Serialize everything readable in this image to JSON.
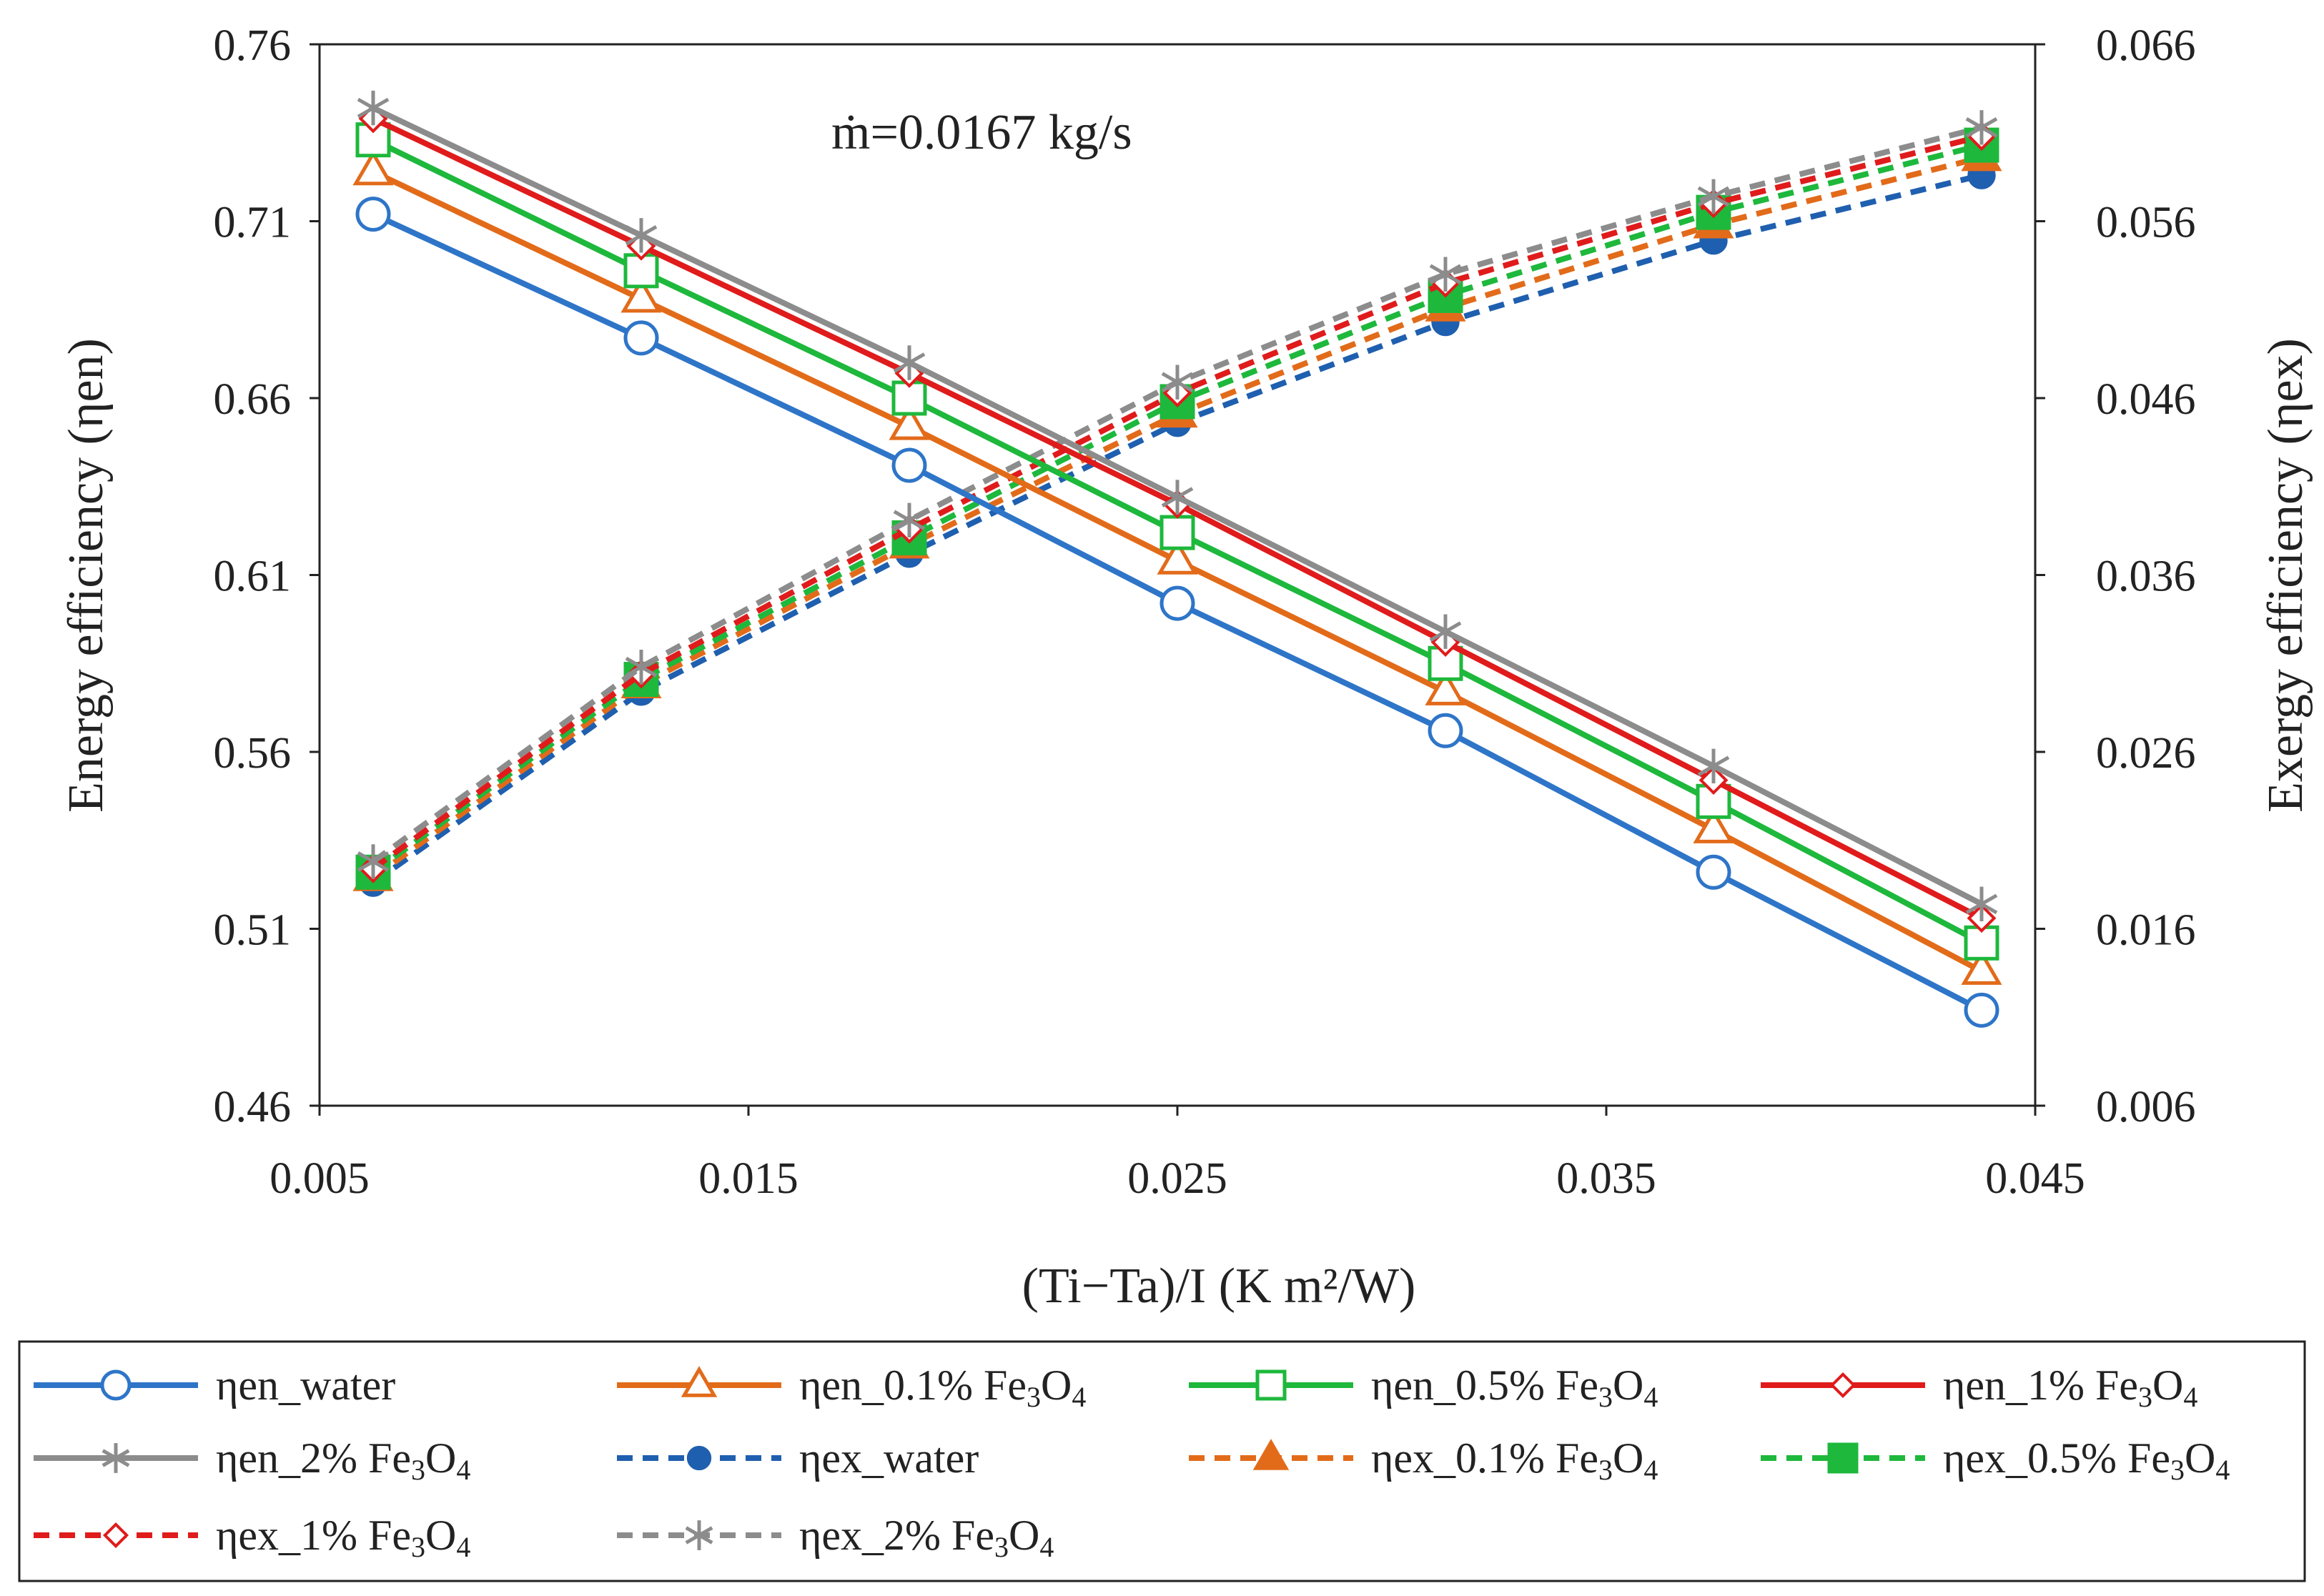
{
  "chart_data": {
    "type": "line",
    "annotation": "ṁ=0.0167 kg/s",
    "xlabel": "(Ti−Ta)/I (K m²/W)",
    "ylabel_left": "Energy efficiency (ηen)",
    "ylabel_right": "Exergy efficiency (ηex)",
    "xlim": [
      0.005,
      0.045
    ],
    "ylim_left": [
      0.46,
      0.76
    ],
    "ylim_right": [
      0.006,
      0.066
    ],
    "x_ticks": [
      "0.005",
      "0.015",
      "0.025",
      "0.035",
      "0.045"
    ],
    "y_left_ticks": [
      "0.46",
      "0.51",
      "0.56",
      "0.61",
      "0.66",
      "0.71",
      "0.76"
    ],
    "y_right_ticks": [
      "0.006",
      "0.016",
      "0.026",
      "0.036",
      "0.046",
      "0.056",
      "0.066"
    ],
    "x": [
      0.00625,
      0.0125,
      0.01875,
      0.025,
      0.03125,
      0.0375,
      0.04375
    ],
    "series": [
      {
        "name": "ηen_water",
        "axis": "left",
        "style": "solid",
        "marker": "circle-open",
        "color": "#2E75C8",
        "values": [
          0.712,
          0.677,
          0.641,
          0.602,
          0.566,
          0.526,
          0.487
        ]
      },
      {
        "name": "ηen_0.1% Fe3O4",
        "axis": "left",
        "style": "solid",
        "marker": "triangle-open",
        "color": "#E26B1A",
        "values": [
          0.724,
          0.688,
          0.652,
          0.614,
          0.577,
          0.538,
          0.498
        ]
      },
      {
        "name": "ηen_0.5% Fe3O4",
        "axis": "left",
        "style": "solid",
        "marker": "square-open",
        "color": "#1EB83C",
        "values": [
          0.733,
          0.696,
          0.66,
          0.622,
          0.585,
          0.546,
          0.506
        ]
      },
      {
        "name": "ηen_1% Fe3O4",
        "axis": "left",
        "style": "solid",
        "marker": "diamond-open",
        "color": "#E01B1B",
        "values": [
          0.739,
          0.703,
          0.667,
          0.63,
          0.591,
          0.552,
          0.513
        ]
      },
      {
        "name": "ηen_2% Fe3O4",
        "axis": "left",
        "style": "solid",
        "marker": "asterisk",
        "color": "#8C8C8C",
        "values": [
          0.742,
          0.706,
          0.67,
          0.632,
          0.594,
          0.556,
          0.517
        ]
      },
      {
        "name": "ηex_water",
        "axis": "right",
        "style": "dashed",
        "marker": "circle-filled",
        "color": "#1F5FAF",
        "values": [
          0.0186,
          0.0294,
          0.0372,
          0.0446,
          0.0503,
          0.0549,
          0.0586
        ]
      },
      {
        "name": "ηex_0.1% Fe3O4",
        "axis": "right",
        "style": "dashed",
        "marker": "triangle-filled",
        "color": "#E26B1A",
        "values": [
          0.0189,
          0.0298,
          0.0377,
          0.0451,
          0.0511,
          0.0558,
          0.0596
        ]
      },
      {
        "name": "ηex_0.5% Fe3O4",
        "axis": "right",
        "style": "dashed",
        "marker": "square-filled",
        "color": "#1EB83C",
        "values": [
          0.0192,
          0.0301,
          0.0381,
          0.0458,
          0.0518,
          0.0565,
          0.0603
        ]
      },
      {
        "name": "ηex_1% Fe3O4",
        "axis": "right",
        "style": "dashed",
        "marker": "diamond-open",
        "color": "#E01B1B",
        "values": [
          0.0194,
          0.0304,
          0.0386,
          0.0463,
          0.0525,
          0.057,
          0.0608
        ]
      },
      {
        "name": "ηex_2% Fe3O4",
        "axis": "right",
        "style": "dashed",
        "marker": "asterisk",
        "color": "#8C8C8C",
        "values": [
          0.0198,
          0.0308,
          0.0391,
          0.0469,
          0.053,
          0.0574,
          0.0613
        ]
      }
    ]
  },
  "legend": {
    "items": [
      {
        "base": "ηen_water",
        "sub1": "",
        "mid": "",
        "sub2": ""
      },
      {
        "base": "ηen_0.1% Fe",
        "sub1": "3",
        "mid": "O",
        "sub2": "4"
      },
      {
        "base": "ηen_0.5% Fe",
        "sub1": "3",
        "mid": "O",
        "sub2": "4"
      },
      {
        "base": "ηen_1% Fe",
        "sub1": "3",
        "mid": "O",
        "sub2": "4"
      },
      {
        "base": "ηen_2% Fe",
        "sub1": "3",
        "mid": "O",
        "sub2": "4"
      },
      {
        "base": "ηex_water",
        "sub1": "",
        "mid": "",
        "sub2": ""
      },
      {
        "base": "ηex_0.1% Fe",
        "sub1": "3",
        "mid": "O",
        "sub2": "4"
      },
      {
        "base": "ηex_0.5% Fe",
        "sub1": "3",
        "mid": "O",
        "sub2": "4"
      },
      {
        "base": "ηex_1% Fe",
        "sub1": "3",
        "mid": "O",
        "sub2": "4"
      },
      {
        "base": "ηex_2% Fe",
        "sub1": "3",
        "mid": "O",
        "sub2": "4"
      }
    ]
  }
}
